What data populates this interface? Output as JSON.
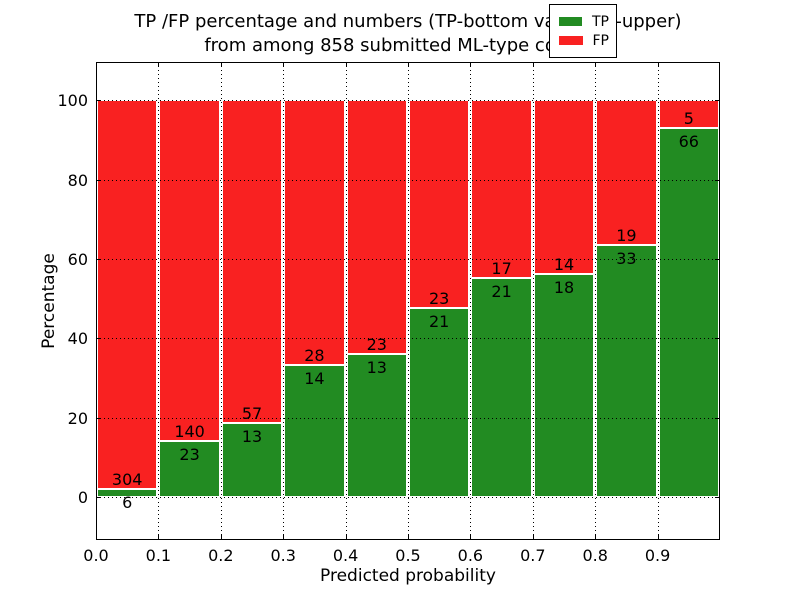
{
  "title": {
    "line1": "TP /FP percentage and numbers (TP-bottom value, FP-upper)",
    "line2": "from among 858 submitted ML-type contacts"
  },
  "chart_data": {
    "type": "bar",
    "stacked": true,
    "title": "TP /FP percentage and numbers (TP-bottom value, FP-upper) from among 858 submitted ML-type contacts",
    "total_contacts": 858,
    "xlabel": "Predicted probability",
    "ylabel": "Percentage",
    "xlim": [
      0.0,
      1.0
    ],
    "ylim": [
      -10.8,
      109.6
    ],
    "x_ticks": [
      0.0,
      0.1,
      0.2,
      0.3,
      0.4,
      0.5,
      0.6,
      0.7,
      0.8,
      0.9
    ],
    "x_tick_labels": [
      "0.0",
      "0.1",
      "0.2",
      "0.3",
      "0.4",
      "0.5",
      "0.6",
      "0.7",
      "0.8",
      "0.9"
    ],
    "y_ticks": [
      0,
      20,
      40,
      60,
      80,
      100
    ],
    "y_tick_labels": [
      "0",
      "20",
      "40",
      "60",
      "80",
      "100"
    ],
    "grid": {
      "style": "dotted",
      "color": "#000000",
      "on": true
    },
    "series": [
      {
        "name": "TP",
        "color": "#228b22",
        "position": "bottom"
      },
      {
        "name": "FP",
        "color": "#f92121",
        "position": "top"
      }
    ],
    "legend": {
      "position": "upper right",
      "entries": [
        {
          "label": "TP",
          "color": "#228b22"
        },
        {
          "label": "FP",
          "color": "#f92121"
        }
      ]
    },
    "bins": [
      {
        "x_start": 0.0,
        "x_end": 0.1,
        "tp": 6,
        "fp": 304
      },
      {
        "x_start": 0.1,
        "x_end": 0.2,
        "tp": 23,
        "fp": 140
      },
      {
        "x_start": 0.2,
        "x_end": 0.3,
        "tp": 13,
        "fp": 57
      },
      {
        "x_start": 0.3,
        "x_end": 0.4,
        "tp": 14,
        "fp": 28
      },
      {
        "x_start": 0.4,
        "x_end": 0.5,
        "tp": 13,
        "fp": 23
      },
      {
        "x_start": 0.5,
        "x_end": 0.6,
        "tp": 21,
        "fp": 23
      },
      {
        "x_start": 0.6,
        "x_end": 0.7,
        "tp": 21,
        "fp": 17
      },
      {
        "x_start": 0.7,
        "x_end": 0.8,
        "tp": 18,
        "fp": 14
      },
      {
        "x_start": 0.8,
        "x_end": 0.9,
        "tp": 33,
        "fp": 19
      },
      {
        "x_start": 0.9,
        "x_end": 1.0,
        "tp": 66,
        "fp": 5
      }
    ]
  }
}
